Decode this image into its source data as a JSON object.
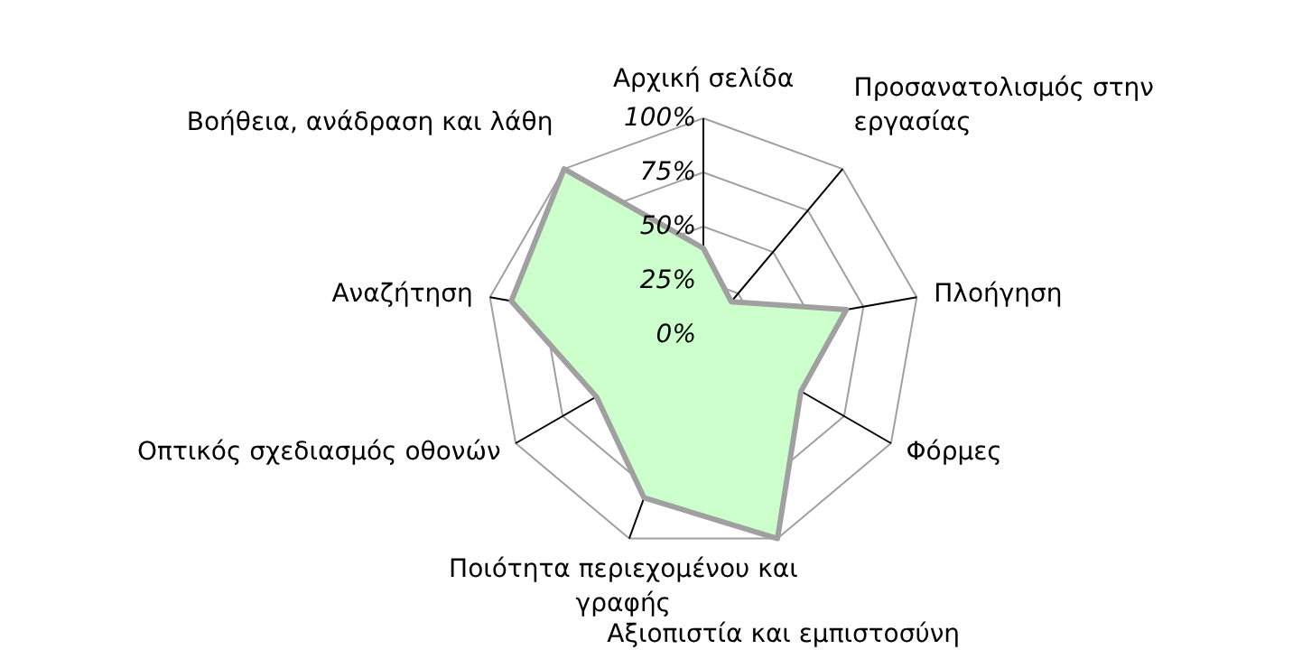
{
  "chart_data": {
    "type": "radar",
    "categories": [
      "Αρχική σελίδα",
      "Προσανατολισμός στην εργασίας",
      "Πλοήγηση",
      "Φόρμες",
      "Αξιοπιστία και εμπιστοσύνη",
      "Ποιότητα περιεχομένου και γραφής",
      "Οπτικός σχεδιασμός οθονών",
      "Αναζήτηση",
      "Βοήθεια, ανάδραση και λάθη"
    ],
    "series": [
      {
        "color": "#ccffcc",
        "values": [
          40,
          20,
          67,
          52,
          100,
          80,
          57,
          90,
          100
        ]
      }
    ],
    "ylim": [
      0,
      100
    ],
    "yticks": [
      {
        "value": 0,
        "label": "0%"
      },
      {
        "value": 25,
        "label": "25%"
      },
      {
        "value": 50,
        "label": "50%"
      },
      {
        "value": 75,
        "label": "75%"
      },
      {
        "value": 100,
        "label": "100%"
      }
    ],
    "grid": true
  }
}
